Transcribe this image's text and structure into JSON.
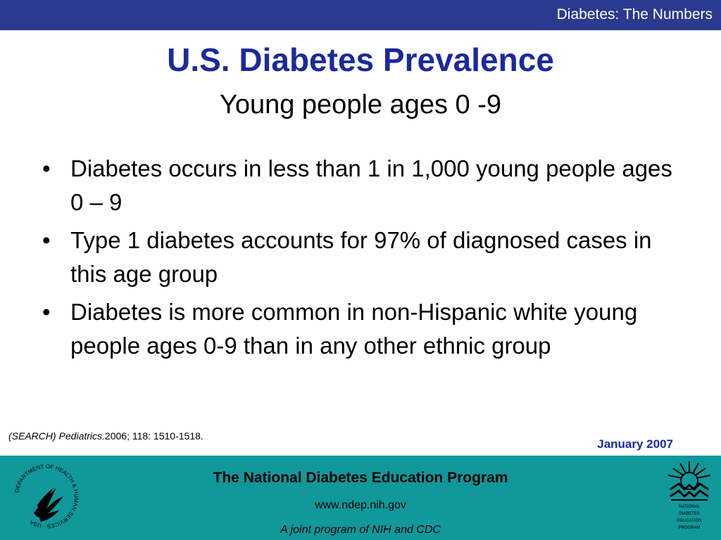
{
  "header": {
    "section_title": "Diabetes: The Numbers"
  },
  "slide": {
    "title": "U.S. Diabetes Prevalence",
    "subtitle": "Young people ages 0 -9",
    "bullets": [
      "Diabetes occurs in less than 1 in 1,000 young people ages 0 – 9",
      "Type 1 diabetes accounts for 97% of diagnosed cases in this age group",
      "Diabetes is more common in non-Hispanic white young people ages 0-9 than in any other ethnic group"
    ],
    "bullet_char": "•",
    "citation_italic": "(SEARCH) Pediatrics.",
    "citation_rest": "2006; 118: 1510-1518.",
    "date": "January 2007"
  },
  "footer": {
    "title": "The National Diabetes Education Program",
    "url": "www.ndep.nih.gov",
    "joint": "A joint program of NIH and CDC",
    "hhs_seal_text": "DEPARTMENT OF HEALTH & HUMAN SERVICES · USA",
    "ndep_logo_text": [
      "NATIONAL",
      "DIABETES",
      "EDUCATION",
      "PROGRAM"
    ]
  },
  "colors": {
    "topbar": "#2b3a8f",
    "title": "#1b2a9b",
    "footer": "#11989a"
  }
}
